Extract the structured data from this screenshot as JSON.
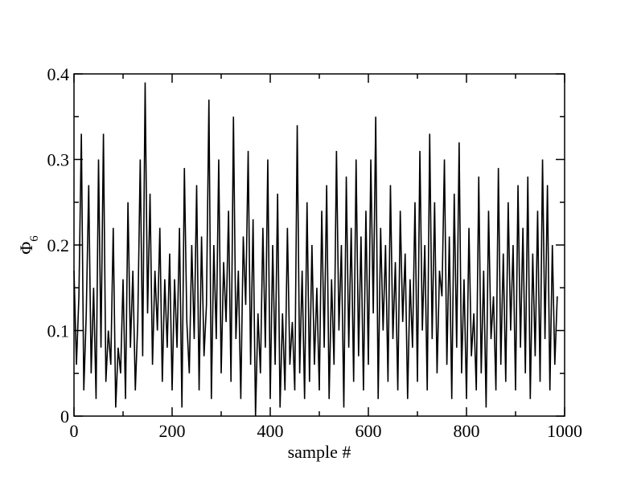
{
  "chart_data": {
    "type": "line",
    "xlabel": "sample #",
    "ylabel": "Φ",
    "ylabel_subscript": "6",
    "x": [
      0,
      5,
      10,
      15,
      20,
      25,
      30,
      35,
      40,
      45,
      50,
      55,
      60,
      65,
      70,
      75,
      80,
      85,
      90,
      95,
      100,
      105,
      110,
      115,
      120,
      125,
      130,
      135,
      140,
      145,
      150,
      155,
      160,
      165,
      170,
      175,
      180,
      185,
      190,
      195,
      200,
      205,
      210,
      215,
      220,
      225,
      230,
      235,
      240,
      245,
      250,
      255,
      260,
      265,
      270,
      275,
      280,
      285,
      290,
      295,
      300,
      305,
      310,
      315,
      320,
      325,
      330,
      335,
      340,
      345,
      350,
      355,
      360,
      365,
      370,
      375,
      380,
      385,
      390,
      395,
      400,
      405,
      410,
      415,
      420,
      425,
      430,
      435,
      440,
      445,
      450,
      455,
      460,
      465,
      470,
      475,
      480,
      485,
      490,
      495,
      500,
      505,
      510,
      515,
      520,
      525,
      530,
      535,
      540,
      545,
      550,
      555,
      560,
      565,
      570,
      575,
      580,
      585,
      590,
      595,
      600,
      605,
      610,
      615,
      620,
      625,
      630,
      635,
      640,
      645,
      650,
      655,
      660,
      665,
      670,
      675,
      680,
      685,
      690,
      695,
      700,
      705,
      710,
      715,
      720,
      725,
      730,
      735,
      740,
      745,
      750,
      755,
      760,
      765,
      770,
      775,
      780,
      785,
      790,
      795,
      800,
      805,
      810,
      815,
      820,
      825,
      830,
      835,
      840,
      845,
      850,
      855,
      860,
      865,
      870,
      875,
      880,
      885,
      890,
      895,
      900,
      905,
      910,
      915,
      920,
      925,
      930,
      935,
      940,
      945,
      950,
      955,
      960,
      965,
      970,
      975,
      980,
      985
    ],
    "values": [
      0.17,
      0.06,
      0.14,
      0.33,
      0.03,
      0.12,
      0.27,
      0.05,
      0.15,
      0.02,
      0.3,
      0.08,
      0.33,
      0.04,
      0.1,
      0.06,
      0.22,
      0.01,
      0.08,
      0.05,
      0.16,
      0.02,
      0.25,
      0.08,
      0.17,
      0.03,
      0.11,
      0.3,
      0.07,
      0.39,
      0.12,
      0.26,
      0.06,
      0.17,
      0.1,
      0.22,
      0.04,
      0.16,
      0.08,
      0.19,
      0.03,
      0.16,
      0.08,
      0.22,
      0.01,
      0.29,
      0.11,
      0.05,
      0.2,
      0.09,
      0.27,
      0.03,
      0.21,
      0.07,
      0.13,
      0.37,
      0.02,
      0.2,
      0.09,
      0.3,
      0.05,
      0.18,
      0.11,
      0.24,
      0.04,
      0.35,
      0.09,
      0.17,
      0.02,
      0.21,
      0.13,
      0.31,
      0.06,
      0.23,
      0.0,
      0.12,
      0.05,
      0.22,
      0.08,
      0.3,
      0.02,
      0.2,
      0.06,
      0.26,
      0.01,
      0.12,
      0.03,
      0.22,
      0.06,
      0.11,
      0.03,
      0.34,
      0.05,
      0.17,
      0.02,
      0.25,
      0.04,
      0.2,
      0.06,
      0.15,
      0.03,
      0.24,
      0.08,
      0.27,
      0.02,
      0.16,
      0.06,
      0.31,
      0.1,
      0.2,
      0.01,
      0.28,
      0.08,
      0.22,
      0.04,
      0.3,
      0.07,
      0.21,
      0.03,
      0.24,
      0.06,
      0.3,
      0.12,
      0.35,
      0.02,
      0.22,
      0.1,
      0.2,
      0.04,
      0.27,
      0.09,
      0.18,
      0.03,
      0.24,
      0.11,
      0.19,
      0.02,
      0.16,
      0.08,
      0.25,
      0.04,
      0.31,
      0.1,
      0.2,
      0.03,
      0.33,
      0.09,
      0.25,
      0.05,
      0.17,
      0.14,
      0.3,
      0.06,
      0.21,
      0.02,
      0.26,
      0.08,
      0.32,
      0.05,
      0.16,
      0.02,
      0.22,
      0.07,
      0.12,
      0.03,
      0.28,
      0.05,
      0.17,
      0.01,
      0.24,
      0.09,
      0.14,
      0.03,
      0.29,
      0.06,
      0.19,
      0.04,
      0.25,
      0.1,
      0.2,
      0.03,
      0.27,
      0.08,
      0.22,
      0.05,
      0.28,
      0.02,
      0.19,
      0.07,
      0.24,
      0.04,
      0.3,
      0.09,
      0.27,
      0.03,
      0.2,
      0.06,
      0.14
    ],
    "color": "#000000",
    "xlim": [
      0,
      1000
    ],
    "xticks": [
      0,
      200,
      400,
      600,
      800,
      1000
    ],
    "xminorticks": [
      100,
      300,
      500,
      700,
      900
    ],
    "ylim": [
      0,
      0.4
    ],
    "yticks": [
      0,
      0.1,
      0.2,
      0.3,
      0.4
    ],
    "yminorticks": [
      0.05,
      0.15,
      0.25,
      0.35
    ]
  }
}
